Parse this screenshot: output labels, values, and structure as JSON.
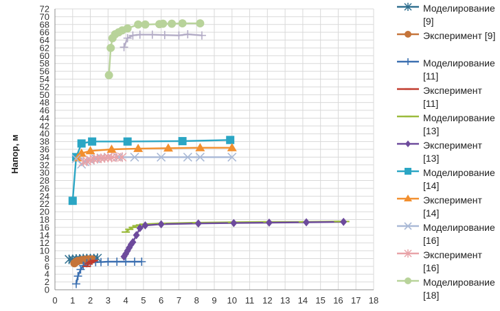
{
  "chart_data": {
    "type": "line",
    "title": "",
    "ylabel": "Напор, м",
    "xlabel": "",
    "xlim": [
      0,
      18
    ],
    "ylim": [
      0,
      72
    ],
    "x_ticks": [
      0,
      1,
      2,
      3,
      4,
      5,
      6,
      7,
      8,
      9,
      10,
      11,
      12,
      13,
      14,
      15,
      16,
      17,
      18
    ],
    "y_ticks": [
      0,
      2,
      4,
      6,
      8,
      10,
      12,
      14,
      16,
      18,
      20,
      22,
      24,
      26,
      28,
      30,
      32,
      34,
      36,
      38,
      40,
      42,
      44,
      46,
      48,
      50,
      52,
      54,
      56,
      58,
      60,
      62,
      64,
      66,
      68,
      70,
      72
    ],
    "grid": true,
    "legend_position": "right",
    "series": [
      {
        "name": "Моделирование [9]",
        "color": "#2f6f8f",
        "marker": "asterisk",
        "x": [
          0.8,
          1.0,
          1.2,
          1.4,
          1.6,
          1.8,
          2.0,
          2.2,
          2.4
        ],
        "y": [
          7.8,
          7.8,
          7.9,
          7.9,
          8.0,
          8.0,
          8.0,
          8.0,
          8.1
        ]
      },
      {
        "name": "Эксперимент [9]",
        "color": "#c5743a",
        "marker": "circle",
        "x": [
          1.1,
          1.2,
          1.3,
          1.5,
          1.7,
          1.9,
          2.1
        ],
        "y": [
          6.8,
          7.2,
          7.4,
          7.6,
          7.7,
          7.8,
          7.8
        ]
      },
      {
        "name": "Моделирование [11]",
        "color": "#3a6fb0",
        "marker": "plus",
        "x": [
          1.2,
          1.3,
          1.45,
          1.6,
          1.8,
          2.0,
          2.3,
          2.6,
          3.0,
          3.5,
          4.0,
          4.5,
          4.9
        ],
        "y": [
          1.5,
          3.5,
          5.2,
          6.2,
          6.8,
          7.0,
          7.1,
          7.1,
          7.2,
          7.2,
          7.2,
          7.2,
          7.2
        ]
      },
      {
        "name": "Эксперимент [11]",
        "color": "#c0392b",
        "marker": "dash",
        "x": [
          1.8,
          1.9,
          2.0,
          2.1,
          2.2
        ],
        "y": [
          6.0,
          6.6,
          7.0,
          7.3,
          7.5
        ]
      },
      {
        "name": "Моделирование [13]",
        "color": "#9bbb3c",
        "marker": "dash",
        "x": [
          4.0,
          4.2,
          4.4,
          4.6,
          4.8,
          5.0,
          6.0,
          8.0,
          10.0,
          12.0,
          14.0,
          16.0,
          16.4
        ],
        "y": [
          14.8,
          15.5,
          16.0,
          16.4,
          16.6,
          16.8,
          17.0,
          17.2,
          17.3,
          17.4,
          17.4,
          17.5,
          17.5
        ]
      },
      {
        "name": "Эксперимент [13]",
        "color": "#6d4a9c",
        "marker": "diamond",
        "x": [
          3.9,
          4.0,
          4.1,
          4.2,
          4.3,
          4.4,
          4.6,
          4.8,
          5.1,
          6.0,
          8.1,
          10.1,
          12.1,
          14.2,
          16.3
        ],
        "y": [
          8.5,
          9.2,
          10.0,
          10.8,
          11.6,
          12.2,
          14.0,
          15.8,
          16.5,
          16.8,
          17.0,
          17.1,
          17.2,
          17.3,
          17.4
        ]
      },
      {
        "name": "Моделирование [14]",
        "color": "#2ba6c4",
        "marker": "square",
        "x": [
          1.0,
          1.2,
          1.5,
          2.1,
          4.1,
          7.2,
          9.9
        ],
        "y": [
          22.8,
          34.0,
          37.5,
          38.0,
          38.0,
          38.1,
          38.4
        ]
      },
      {
        "name": "Эксперимент [14]",
        "color": "#f28f2e",
        "marker": "triangle",
        "x": [
          1.3,
          1.5,
          2.0,
          3.2,
          4.7,
          6.4,
          8.2,
          10.0
        ],
        "y": [
          33.8,
          35.0,
          35.6,
          36.0,
          36.2,
          36.3,
          36.4,
          36.4
        ]
      },
      {
        "name": "Моделирование [16]",
        "color": "#a9b9d6",
        "marker": "x",
        "x": [
          1.2,
          1.5,
          1.7,
          2.0,
          2.3,
          2.6,
          3.0,
          3.6,
          4.5,
          6.0,
          7.5,
          8.2,
          10.0
        ],
        "y": [
          33.6,
          32.2,
          32.8,
          33.2,
          33.6,
          33.8,
          34.0,
          34.0,
          34.0,
          34.0,
          34.0,
          34.0,
          34.0
        ]
      },
      {
        "name": "Эксперимент [16]",
        "color": "#e8a3a8",
        "marker": "asterisk",
        "x": [
          1.6,
          1.8,
          2.0,
          2.2,
          2.4,
          2.6,
          2.8,
          3.0,
          3.2,
          3.5,
          3.8
        ],
        "y": [
          32.8,
          33.0,
          33.3,
          33.5,
          33.6,
          33.7,
          33.8,
          33.9,
          33.9,
          34.0,
          34.0
        ]
      },
      {
        "name": "Моделирование [18]",
        "color": "#b8d39a",
        "marker": "circle",
        "x": [
          3.05,
          3.15,
          3.25,
          3.4,
          3.6,
          3.8,
          4.1,
          4.7,
          5.1,
          5.9,
          6.1,
          6.6,
          7.2,
          8.2
        ],
        "y": [
          55.0,
          62.0,
          64.5,
          65.5,
          66.0,
          66.5,
          67.0,
          68.0,
          68.0,
          68.1,
          68.2,
          68.2,
          68.3,
          68.3
        ]
      },
      {
        "name": "",
        "color": "#b3acc6",
        "marker": "plus",
        "x": [
          3.9,
          4.1,
          4.4,
          4.8,
          5.5,
          6.2,
          7.0,
          7.5,
          8.3
        ],
        "y": [
          62.2,
          64.5,
          65.2,
          65.4,
          65.4,
          65.3,
          65.2,
          65.5,
          65.2
        ]
      }
    ]
  }
}
